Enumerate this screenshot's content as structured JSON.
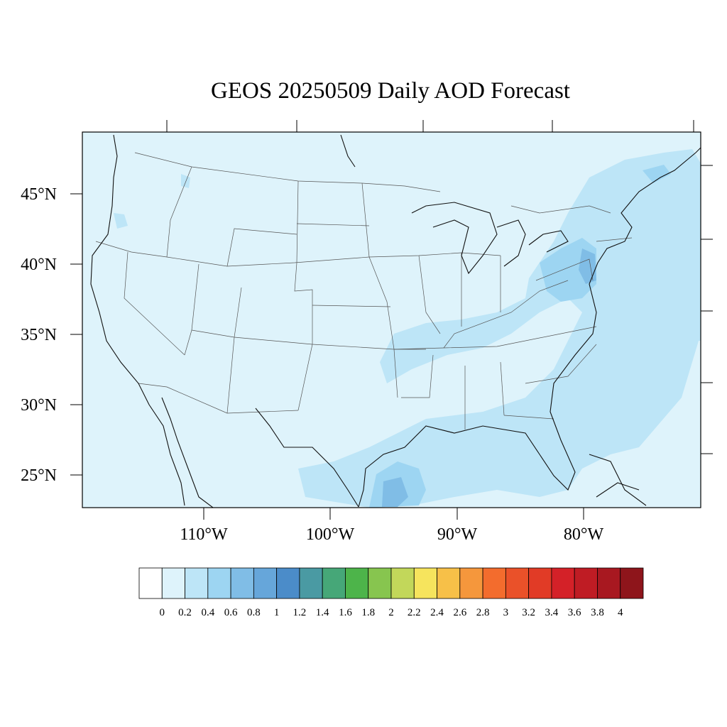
{
  "title": "GEOS 20250509 Daily AOD Forecast",
  "map": {
    "lat_labels": [
      "45°N",
      "40°N",
      "35°N",
      "30°N",
      "25°N"
    ],
    "lon_labels": [
      "110°W",
      "100°W",
      "90°W",
      "80°W"
    ],
    "background_color": "#def3fb"
  },
  "colorbar": {
    "labels": [
      "0",
      "0.2",
      "0.4",
      "0.6",
      "0.8",
      "1",
      "1.2",
      "1.4",
      "1.6",
      "1.8",
      "2",
      "2.2",
      "2.4",
      "2.6",
      "2.8",
      "3",
      "3.2",
      "3.4",
      "3.6",
      "3.8",
      "4"
    ],
    "colors": [
      "#ffffff",
      "#def3fb",
      "#bde5f7",
      "#9dd5f2",
      "#80bde6",
      "#66a6da",
      "#4b8cc9",
      "#4a9aa3",
      "#46a778",
      "#4db44a",
      "#87c54f",
      "#c2d75a",
      "#f6e45d",
      "#f7c048",
      "#f5973c",
      "#f36c2d",
      "#ea5129",
      "#e13b26",
      "#d42128",
      "#bf1c24",
      "#a81820",
      "#8e151b"
    ]
  }
}
